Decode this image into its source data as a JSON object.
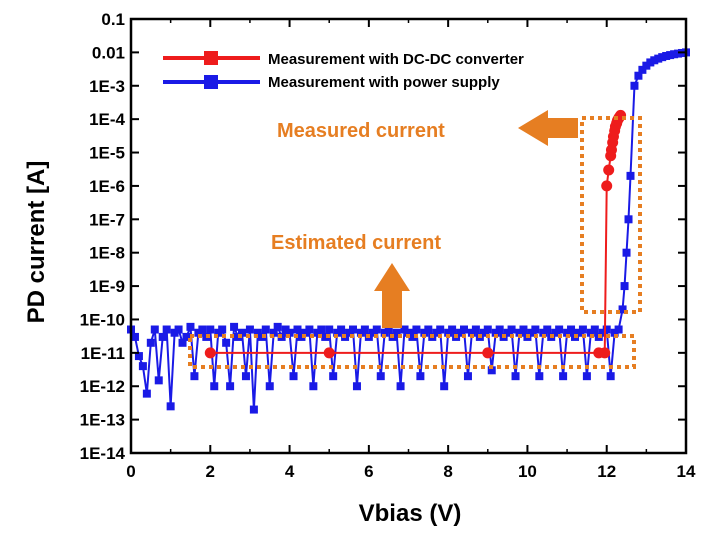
{
  "chart_data": {
    "type": "line",
    "xlabel": "Vbias (V)",
    "ylabel": "PD current [A]",
    "xlim": [
      0,
      14
    ],
    "ylim": [
      1e-14,
      0.1
    ],
    "yscale": "log",
    "x_ticks": [
      0,
      2,
      4,
      6,
      8,
      10,
      12,
      14
    ],
    "x_tick_labels": [
      "0",
      "2",
      "4",
      "6",
      "8",
      "10",
      "12",
      "14"
    ],
    "y_ticks": [
      0.1,
      0.01,
      0.001,
      0.0001,
      1e-05,
      1e-06,
      1e-07,
      1e-08,
      1e-09,
      1e-10,
      1e-11,
      1e-12,
      1e-13,
      1e-14
    ],
    "y_tick_labels": [
      "0.1",
      "0.01",
      "1E-3",
      "1E-4",
      "1E-5",
      "1E-6",
      "1E-7",
      "1E-8",
      "1E-9",
      "1E-10",
      "1E-11",
      "1E-12",
      "1E-13",
      "1E-14"
    ],
    "grid": false,
    "legend_position": "top-left",
    "colors": {
      "dcdc": "#EE1C1C",
      "supply": "#1A1AE6",
      "annotation": "#E67E22"
    },
    "series": [
      {
        "name": "Measurement with DC-DC converter",
        "x": [
          2.0,
          5.0,
          9.0,
          11.8,
          11.95,
          12.0,
          12.05,
          12.1,
          12.12,
          12.15,
          12.17,
          12.2,
          12.22,
          12.25,
          12.27,
          12.3,
          12.32,
          12.35
        ],
        "y": [
          1e-11,
          1e-11,
          1e-11,
          1e-11,
          1e-11,
          1e-06,
          3e-06,
          8e-06,
          1.2e-05,
          2e-05,
          3e-05,
          4.5e-05,
          6e-05,
          7.5e-05,
          9e-05,
          0.000105,
          0.000115,
          0.00013
        ]
      },
      {
        "name": "Measurement with power supply",
        "x": [
          0.0,
          0.1,
          0.2,
          0.3,
          0.4,
          0.5,
          0.6,
          0.7,
          0.8,
          0.9,
          1.0,
          1.1,
          1.2,
          1.3,
          1.4,
          1.5,
          1.6,
          1.7,
          1.8,
          1.9,
          2.0,
          2.1,
          2.2,
          2.3,
          2.4,
          2.5,
          2.6,
          2.7,
          2.8,
          2.9,
          3.0,
          3.1,
          3.2,
          3.3,
          3.4,
          3.5,
          3.6,
          3.7,
          3.8,
          3.9,
          4.0,
          4.1,
          4.2,
          4.3,
          4.4,
          4.5,
          4.6,
          4.7,
          4.8,
          4.9,
          5.0,
          5.1,
          5.2,
          5.3,
          5.4,
          5.5,
          5.6,
          5.7,
          5.8,
          5.9,
          6.0,
          6.1,
          6.2,
          6.3,
          6.4,
          6.5,
          6.6,
          6.7,
          6.8,
          6.9,
          7.0,
          7.1,
          7.2,
          7.3,
          7.4,
          7.5,
          7.6,
          7.7,
          7.8,
          7.9,
          8.0,
          8.1,
          8.2,
          8.3,
          8.4,
          8.5,
          8.6,
          8.7,
          8.8,
          8.9,
          9.0,
          9.1,
          9.2,
          9.3,
          9.4,
          9.5,
          9.6,
          9.7,
          9.8,
          9.9,
          10.0,
          10.1,
          10.2,
          10.3,
          10.4,
          10.5,
          10.6,
          10.7,
          10.8,
          10.9,
          11.0,
          11.1,
          11.2,
          11.3,
          11.4,
          11.5,
          11.6,
          11.7,
          11.8,
          11.9,
          12.0,
          12.1,
          12.2,
          12.3,
          12.4,
          12.45,
          12.5,
          12.55,
          12.6,
          12.7,
          12.8,
          12.9,
          13.0,
          13.1,
          13.2,
          13.3,
          13.4,
          13.5,
          13.6,
          13.7,
          13.8,
          13.9,
          14.0
        ],
        "y": [
          5e-11,
          3e-11,
          8e-12,
          4e-12,
          6e-13,
          2e-11,
          5e-11,
          1.5e-12,
          3e-11,
          5e-11,
          2.5e-13,
          4e-11,
          5e-11,
          2e-11,
          3e-11,
          6e-11,
          2e-12,
          4e-11,
          5e-11,
          3e-11,
          5e-11,
          1e-12,
          4e-11,
          5e-11,
          2e-11,
          1e-12,
          6e-11,
          3e-11,
          4e-11,
          2e-12,
          5e-11,
          2e-13,
          4e-11,
          3e-11,
          5e-11,
          1e-12,
          4e-11,
          6e-11,
          3e-11,
          5e-11,
          4e-11,
          2e-12,
          5e-11,
          3e-11,
          4e-11,
          5e-11,
          1e-12,
          4e-11,
          5e-11,
          3e-11,
          5e-11,
          2e-12,
          4e-11,
          5e-11,
          3e-11,
          4e-11,
          5e-11,
          1e-12,
          4e-11,
          5e-11,
          3e-11,
          4e-11,
          5e-11,
          2e-12,
          4e-11,
          5e-11,
          3e-11,
          4e-11,
          1e-12,
          5e-11,
          4e-11,
          3e-11,
          5e-11,
          2e-12,
          4e-11,
          5e-11,
          3e-11,
          4e-11,
          5e-11,
          1e-12,
          4e-11,
          5e-11,
          3e-11,
          4e-11,
          5e-11,
          2e-12,
          4e-11,
          5e-11,
          3e-11,
          4e-11,
          5e-11,
          3e-12,
          4e-11,
          5e-11,
          3e-11,
          4e-11,
          5e-11,
          2e-12,
          4e-11,
          5e-11,
          3e-11,
          4e-11,
          5e-11,
          2e-12,
          4e-11,
          5e-11,
          3e-11,
          4e-11,
          5e-11,
          2e-12,
          4e-11,
          5e-11,
          3e-11,
          4e-11,
          5e-11,
          2e-12,
          4e-11,
          5e-11,
          3e-11,
          4e-11,
          5e-11,
          2e-12,
          4e-11,
          5e-11,
          2e-10,
          1e-09,
          1e-08,
          1e-07,
          2e-06,
          0.001,
          0.002,
          0.003,
          0.004,
          0.005,
          0.0058,
          0.0065,
          0.0072,
          0.0078,
          0.0083,
          0.0088,
          0.0092,
          0.0096,
          0.01
        ]
      }
    ],
    "annotations": [
      {
        "text": "Measured current",
        "arrow": "left"
      },
      {
        "text": "Estimated current",
        "arrow": "up"
      }
    ]
  }
}
